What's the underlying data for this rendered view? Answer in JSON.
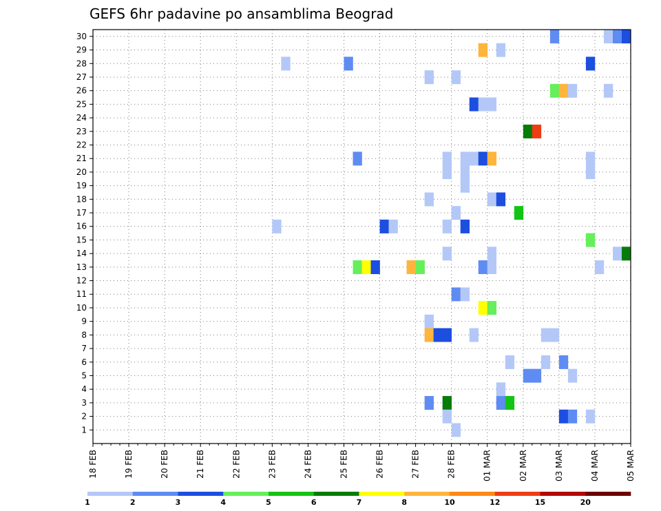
{
  "chart_data": {
    "type": "heatmap",
    "title": "GEFS 6hr padavine po ansamblima Beograd",
    "xlabel": "",
    "ylabel": "",
    "x_tick_labels": [
      "18 FEB",
      "19 FEB",
      "20 FEB",
      "21 FEB",
      "22 FEB",
      "23 FEB",
      "24 FEB",
      "25 FEB",
      "26 FEB",
      "27 FEB",
      "28 FEB",
      "01 MAR",
      "02 MAR",
      "03 MAR",
      "04 MAR",
      "05 MAR"
    ],
    "x_range": [
      "18 FEB 00",
      "05 MAR 00"
    ],
    "time_step_hours": 6,
    "y_tick_labels": [
      "1",
      "2",
      "3",
      "4",
      "5",
      "6",
      "7",
      "8",
      "9",
      "10",
      "11",
      "12",
      "13",
      "14",
      "15",
      "16",
      "17",
      "18",
      "19",
      "20",
      "21",
      "22",
      "23",
      "24",
      "25",
      "26",
      "27",
      "28",
      "29",
      "30"
    ],
    "y_range": [
      1,
      30
    ],
    "grid": true,
    "colorbar": {
      "placement": "bottom",
      "tick_labels": [
        "1",
        "2",
        "3",
        "4",
        "5",
        "6",
        "7",
        "8",
        "10",
        "12",
        "15",
        "20"
      ],
      "colors": [
        "#b4c8f8",
        "#5f8cf2",
        "#1c4ee0",
        "#66ef5a",
        "#14c414",
        "#087c08",
        "#ffff00",
        "#ffb43c",
        "#ff8a14",
        "#ee3d14",
        "#b20a0a",
        "#6e0000"
      ]
    },
    "cells": [
      {
        "member": 30,
        "time": "02 MAR 18",
        "value": 2
      },
      {
        "member": 30,
        "time": "04 MAR 06",
        "value": 1
      },
      {
        "member": 30,
        "time": "04 MAR 12",
        "value": 2
      },
      {
        "member": 30,
        "time": "04 MAR 18",
        "value": 3
      },
      {
        "member": 29,
        "time": "28 FEB 18",
        "value": 8
      },
      {
        "member": 29,
        "time": "01 MAR 06",
        "value": 1
      },
      {
        "member": 28,
        "time": "23 FEB 06",
        "value": 1
      },
      {
        "member": 28,
        "time": "25 FEB 00",
        "value": 2
      },
      {
        "member": 28,
        "time": "03 MAR 18",
        "value": 3
      },
      {
        "member": 27,
        "time": "27 FEB 06",
        "value": 1
      },
      {
        "member": 27,
        "time": "28 FEB 00",
        "value": 1
      },
      {
        "member": 26,
        "time": "02 MAR 18",
        "value": 4
      },
      {
        "member": 26,
        "time": "03 MAR 00",
        "value": 8
      },
      {
        "member": 26,
        "time": "03 MAR 06",
        "value": 1
      },
      {
        "member": 26,
        "time": "04 MAR 06",
        "value": 1
      },
      {
        "member": 25,
        "time": "28 FEB 12",
        "value": 3
      },
      {
        "member": 25,
        "time": "28 FEB 18",
        "value": 1
      },
      {
        "member": 25,
        "time": "01 MAR 00",
        "value": 1
      },
      {
        "member": 23,
        "time": "02 MAR 00",
        "value": 6
      },
      {
        "member": 23,
        "time": "02 MAR 06",
        "value": 12
      },
      {
        "member": 21,
        "time": "25 FEB 06",
        "value": 2
      },
      {
        "member": 21,
        "time": "27 FEB 18",
        "value": 1
      },
      {
        "member": 21,
        "time": "28 FEB 06",
        "value": 1
      },
      {
        "member": 21,
        "time": "28 FEB 12",
        "value": 1
      },
      {
        "member": 21,
        "time": "28 FEB 18",
        "value": 3
      },
      {
        "member": 21,
        "time": "01 MAR 00",
        "value": 8
      },
      {
        "member": 21,
        "time": "03 MAR 18",
        "value": 1
      },
      {
        "member": 20,
        "time": "27 FEB 18",
        "value": 1
      },
      {
        "member": 20,
        "time": "28 FEB 06",
        "value": 1
      },
      {
        "member": 20,
        "time": "03 MAR 18",
        "value": 1
      },
      {
        "member": 19,
        "time": "28 FEB 06",
        "value": 1
      },
      {
        "member": 18,
        "time": "27 FEB 06",
        "value": 1
      },
      {
        "member": 18,
        "time": "01 MAR 00",
        "value": 1
      },
      {
        "member": 18,
        "time": "01 MAR 06",
        "value": 3
      },
      {
        "member": 17,
        "time": "28 FEB 00",
        "value": 1
      },
      {
        "member": 17,
        "time": "01 MAR 18",
        "value": 5
      },
      {
        "member": 16,
        "time": "23 FEB 00",
        "value": 1
      },
      {
        "member": 16,
        "time": "26 FEB 00",
        "value": 3
      },
      {
        "member": 16,
        "time": "26 FEB 06",
        "value": 1
      },
      {
        "member": 16,
        "time": "27 FEB 18",
        "value": 1
      },
      {
        "member": 16,
        "time": "28 FEB 06",
        "value": 3
      },
      {
        "member": 15,
        "time": "03 MAR 18",
        "value": 4
      },
      {
        "member": 14,
        "time": "27 FEB 18",
        "value": 1
      },
      {
        "member": 14,
        "time": "01 MAR 00",
        "value": 1
      },
      {
        "member": 14,
        "time": "04 MAR 12",
        "value": 1
      },
      {
        "member": 14,
        "time": "04 MAR 18",
        "value": 6
      },
      {
        "member": 13,
        "time": "25 FEB 06",
        "value": 4
      },
      {
        "member": 13,
        "time": "25 FEB 12",
        "value": 7
      },
      {
        "member": 13,
        "time": "25 FEB 18",
        "value": 3
      },
      {
        "member": 13,
        "time": "26 FEB 18",
        "value": 8
      },
      {
        "member": 13,
        "time": "27 FEB 00",
        "value": 4
      },
      {
        "member": 13,
        "time": "28 FEB 18",
        "value": 2
      },
      {
        "member": 13,
        "time": "01 MAR 00",
        "value": 1
      },
      {
        "member": 13,
        "time": "04 MAR 00",
        "value": 1
      },
      {
        "member": 11,
        "time": "28 FEB 00",
        "value": 2
      },
      {
        "member": 11,
        "time": "28 FEB 06",
        "value": 1
      },
      {
        "member": 10,
        "time": "28 FEB 18",
        "value": 7
      },
      {
        "member": 10,
        "time": "01 MAR 00",
        "value": 4
      },
      {
        "member": 9,
        "time": "27 FEB 06",
        "value": 1
      },
      {
        "member": 8,
        "time": "27 FEB 06",
        "value": 8
      },
      {
        "member": 8,
        "time": "27 FEB 12",
        "value": 3
      },
      {
        "member": 8,
        "time": "27 FEB 18",
        "value": 3
      },
      {
        "member": 8,
        "time": "28 FEB 12",
        "value": 1
      },
      {
        "member": 8,
        "time": "02 MAR 12",
        "value": 1
      },
      {
        "member": 8,
        "time": "02 MAR 18",
        "value": 1
      },
      {
        "member": 6,
        "time": "01 MAR 12",
        "value": 1
      },
      {
        "member": 6,
        "time": "02 MAR 12",
        "value": 1
      },
      {
        "member": 6,
        "time": "03 MAR 00",
        "value": 2
      },
      {
        "member": 5,
        "time": "02 MAR 00",
        "value": 2
      },
      {
        "member": 5,
        "time": "02 MAR 06",
        "value": 2
      },
      {
        "member": 5,
        "time": "03 MAR 06",
        "value": 1
      },
      {
        "member": 4,
        "time": "01 MAR 06",
        "value": 1
      },
      {
        "member": 3,
        "time": "27 FEB 06",
        "value": 2
      },
      {
        "member": 3,
        "time": "27 FEB 18",
        "value": 6
      },
      {
        "member": 3,
        "time": "01 MAR 06",
        "value": 2
      },
      {
        "member": 3,
        "time": "01 MAR 12",
        "value": 5
      },
      {
        "member": 2,
        "time": "27 FEB 18",
        "value": 1
      },
      {
        "member": 2,
        "time": "03 MAR 00",
        "value": 3
      },
      {
        "member": 2,
        "time": "03 MAR 06",
        "value": 2
      },
      {
        "member": 2,
        "time": "03 MAR 18",
        "value": 1
      },
      {
        "member": 1,
        "time": "28 FEB 00",
        "value": 1
      }
    ]
  }
}
